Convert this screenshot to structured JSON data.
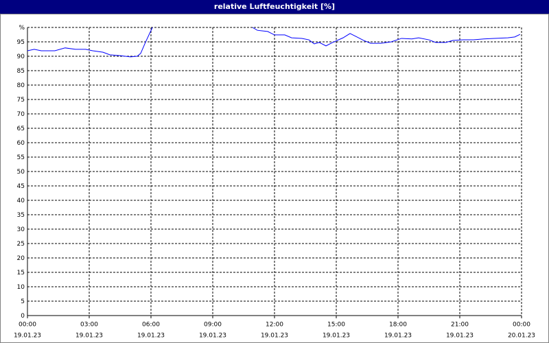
{
  "chart_data": {
    "type": "line",
    "title": "relative Luftfeuchtigkeit [%]",
    "xlim": [
      0,
      24
    ],
    "xticks": [
      {
        "value": 0,
        "label": "00:00"
      },
      {
        "value": 3,
        "label": "03:00"
      },
      {
        "value": 6,
        "label": "06:00"
      },
      {
        "value": 9,
        "label": "09:00"
      },
      {
        "value": 12,
        "label": "12:00"
      },
      {
        "value": 15,
        "label": "15:00"
      },
      {
        "value": 18,
        "label": "18:00"
      },
      {
        "value": 21,
        "label": "21:00"
      },
      {
        "value": 24,
        "label": "00:00"
      }
    ],
    "xtick_dates": [
      "19.01.23",
      "19.01.23",
      "19.01.23",
      "19.01.23",
      "19.01.23",
      "19.01.23",
      "19.01.23",
      "19.01.23",
      "20.01.23"
    ],
    "ylim": [
      0,
      100
    ],
    "yticks": [
      0,
      5,
      10,
      15,
      20,
      25,
      30,
      35,
      40,
      45,
      50,
      55,
      60,
      65,
      70,
      75,
      80,
      85,
      90,
      95,
      {
        "value": 100,
        "label": "%"
      }
    ],
    "grid": true,
    "series": [
      {
        "name": "relative Luftfeuchtigkeit",
        "color": "#0000ff",
        "x": [
          0,
          0.33,
          0.67,
          1.33,
          1.83,
          2.33,
          2.83,
          3.17,
          3.67,
          4,
          4.5,
          5,
          5.33,
          5.5,
          5.73,
          6.07,
          8.5,
          10.93,
          11.17,
          11.67,
          12,
          12.5,
          12.83,
          13.33,
          13.67,
          13.93,
          14.17,
          14.5,
          14.83,
          15.33,
          15.67,
          16,
          16.33,
          16.67,
          17.17,
          17.67,
          18.17,
          18.67,
          19,
          19.5,
          19.83,
          20.33,
          20.67,
          21.17,
          21.67,
          22.17,
          22.67,
          23.33,
          23.67,
          23.93
        ],
        "values": [
          91.9,
          92.4,
          91.9,
          91.9,
          92.9,
          92.4,
          92.4,
          91.9,
          91.4,
          90.5,
          90.2,
          89.8,
          90.0,
          91,
          94.8,
          100,
          null,
          100,
          99,
          98.6,
          97.4,
          97.4,
          96.4,
          96.2,
          95.7,
          94.3,
          94.8,
          93.6,
          94.8,
          96.4,
          97.9,
          96.7,
          95.5,
          94.5,
          94.5,
          95,
          96.2,
          96,
          96.4,
          95.7,
          94.8,
          94.8,
          95.5,
          95.7,
          95.7,
          96,
          96.2,
          96.4,
          96.7,
          97.6
        ]
      }
    ]
  }
}
